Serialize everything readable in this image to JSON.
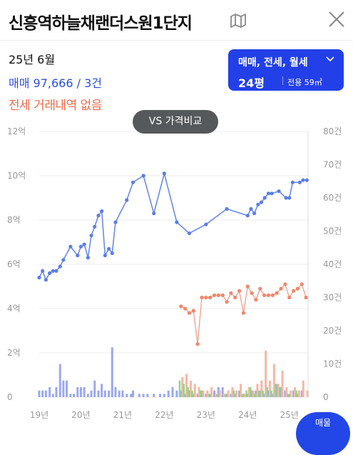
{
  "header": {
    "title": "신흥역하늘채랜더스원1단지"
  },
  "summary": {
    "period": "25년 6월",
    "sale_text": "매매 97,666 / 3건",
    "jeonse_text": "전세 거래내역 없음"
  },
  "filter": {
    "types": "매매, 전세, 월세",
    "pyeong": "24평",
    "area": "전용 59㎡"
  },
  "compare_button": "VS 가격비교",
  "fab_label": "매물",
  "colors": {
    "sale": "#5b7de8",
    "jeonse": "#f0866a",
    "accent": "#2340e8"
  },
  "chart_data": {
    "type": "line",
    "xlabel": "",
    "x_ticks": [
      "19년",
      "20년",
      "21년",
      "22년",
      "23년",
      "24년",
      "25년"
    ],
    "y_left_ticks": [
      "12억",
      "10억",
      "8억",
      "6억",
      "4억",
      "2억",
      "0"
    ],
    "y_right_ticks": [
      "80건",
      "70건",
      "60건",
      "50건",
      "40건",
      "30건",
      "20건",
      "10건",
      "0"
    ],
    "ylim_price_eok": [
      0,
      12
    ],
    "ylim_count": [
      0,
      80
    ],
    "series": [
      {
        "kind": "sale_price",
        "x": [
          19.0,
          19.08,
          19.16,
          19.25,
          19.33,
          19.41,
          19.5,
          19.58,
          19.75,
          19.92,
          20.0,
          20.08,
          20.17,
          20.25,
          20.33,
          20.42,
          20.5,
          20.58,
          20.67,
          20.75,
          20.83,
          21.1,
          21.25,
          21.5,
          21.75,
          22.0,
          22.3,
          22.6,
          23.0,
          23.5,
          24.0,
          24.08,
          24.16,
          24.25,
          24.33,
          24.41,
          24.5,
          24.58,
          24.75,
          24.92,
          25.0,
          25.08,
          25.25,
          25.33,
          25.42
        ],
        "y": [
          5.4,
          5.7,
          5.3,
          5.6,
          5.7,
          5.7,
          5.9,
          6.2,
          6.8,
          6.4,
          6.8,
          6.9,
          6.3,
          7.3,
          7.7,
          8.2,
          8.4,
          6.4,
          6.7,
          6.5,
          7.9,
          8.9,
          9.7,
          10.0,
          8.3,
          10.1,
          7.9,
          7.4,
          7.8,
          8.5,
          8.2,
          8.5,
          8.3,
          8.7,
          8.8,
          9.0,
          9.2,
          9.2,
          9.3,
          9.0,
          9.0,
          9.7,
          9.7,
          9.8,
          9.8
        ]
      },
      {
        "kind": "jeonse_price",
        "x": [
          22.4,
          22.5,
          22.6,
          22.7,
          22.8,
          22.9,
          23.0,
          23.1,
          23.2,
          23.3,
          23.4,
          23.5,
          23.6,
          23.7,
          23.8,
          23.9,
          24.0,
          24.1,
          24.2,
          24.3,
          24.4,
          24.5,
          24.6,
          24.7,
          24.8,
          24.9,
          25.0,
          25.1,
          25.2,
          25.3,
          25.4
        ],
        "y": [
          4.1,
          4.0,
          3.8,
          3.9,
          2.4,
          4.5,
          4.5,
          4.5,
          4.6,
          4.6,
          4.6,
          4.3,
          4.7,
          4.5,
          4.8,
          3.8,
          5.0,
          4.7,
          4.4,
          4.9,
          4.6,
          4.6,
          4.6,
          4.7,
          4.9,
          5.1,
          4.5,
          4.8,
          4.9,
          5.1,
          4.5
        ]
      }
    ],
    "volume": {
      "sale_counts": [
        2,
        2,
        2,
        3,
        1,
        3,
        10,
        5,
        5,
        1,
        1,
        3,
        3,
        3,
        1,
        2,
        5,
        2,
        4,
        2,
        2,
        15,
        3,
        2,
        2,
        1,
        1,
        2,
        1,
        1,
        1,
        1,
        1,
        1,
        2,
        3,
        2,
        2,
        1,
        2,
        1,
        1,
        2,
        1,
        1,
        2,
        3,
        3,
        1,
        1,
        1,
        2,
        1,
        1,
        2,
        2,
        2,
        1,
        2,
        1,
        4,
        3,
        2,
        1,
        2,
        1,
        2
      ],
      "sale_x": [
        19.0,
        19.08,
        19.16,
        19.25,
        19.33,
        19.41,
        19.5,
        19.58,
        19.66,
        19.75,
        19.83,
        19.92,
        20.0,
        20.08,
        20.17,
        20.25,
        20.33,
        20.42,
        20.5,
        20.58,
        20.67,
        20.75,
        20.83,
        20.92,
        21.0,
        21.1,
        21.2,
        21.25,
        21.4,
        21.5,
        21.6,
        21.75,
        21.9,
        22.0,
        22.1,
        22.2,
        22.3,
        22.4,
        22.5,
        22.6,
        22.7,
        22.8,
        22.9,
        23.0,
        23.1,
        23.2,
        23.3,
        23.4,
        23.5,
        23.6,
        23.7,
        23.8,
        23.9,
        24.0,
        24.1,
        24.2,
        24.3,
        24.4,
        24.5,
        24.6,
        24.7,
        24.8,
        24.9,
        25.0,
        25.1,
        25.2,
        25.3
      ],
      "jeonse_counts": [
        6,
        7,
        5,
        4,
        3,
        2,
        2,
        3,
        1,
        2,
        1,
        2,
        3,
        2,
        4,
        1,
        3,
        2,
        4,
        5,
        14,
        5,
        10,
        4,
        8,
        3,
        2,
        3,
        2,
        5,
        2
      ],
      "jeonse_x": [
        22.4,
        22.5,
        22.6,
        22.7,
        22.8,
        22.9,
        23.0,
        23.1,
        23.2,
        23.3,
        23.4,
        23.5,
        23.6,
        23.7,
        23.8,
        23.9,
        24.0,
        24.1,
        24.2,
        24.3,
        24.4,
        24.5,
        24.6,
        24.7,
        24.8,
        24.9,
        25.0,
        25.1,
        25.2,
        25.3,
        25.4
      ],
      "rent_counts": [
        5,
        4,
        3,
        2,
        2,
        1,
        1,
        1,
        2,
        1,
        2,
        3,
        1,
        2,
        2,
        3,
        2,
        4,
        3,
        1,
        2
      ],
      "rent_x": [
        22.4,
        22.5,
        22.6,
        22.7,
        22.9,
        23.1,
        23.3,
        23.5,
        23.7,
        23.9,
        24.0,
        24.1,
        24.2,
        24.3,
        24.4,
        24.5,
        24.6,
        24.7,
        24.8,
        25.0,
        25.2
      ]
    }
  }
}
